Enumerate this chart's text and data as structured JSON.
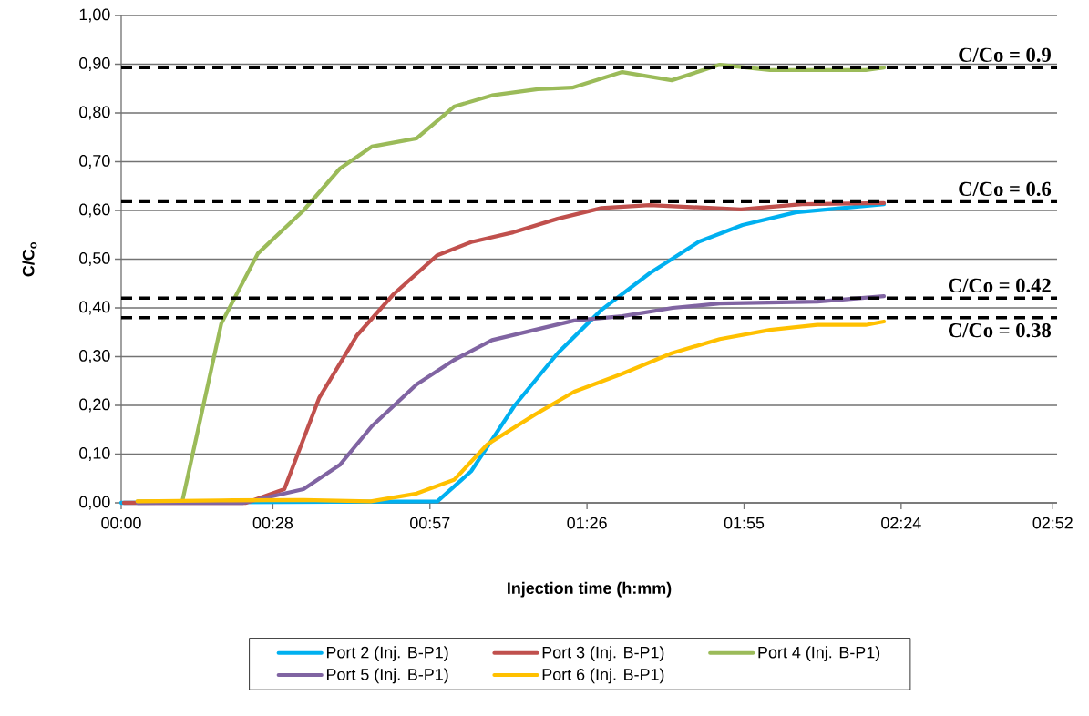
{
  "chart_data": {
    "type": "line",
    "xlabel": "Injection time (h:mm)",
    "ylabel": "C/C$_{o}$",
    "xlim": [
      0,
      2.88
    ],
    "xticks": [
      {
        "value": 0,
        "label": "00:00"
      },
      {
        "value": 0.4667,
        "label": "00:28"
      },
      {
        "value": 0.95,
        "label": "00:57"
      },
      {
        "value": 1.4333,
        "label": "01:26"
      },
      {
        "value": 1.9167,
        "label": "01:55"
      },
      {
        "value": 2.4,
        "label": "02:24"
      },
      {
        "value": 2.8667,
        "label": "02:52"
      }
    ],
    "ylim": [
      0,
      1
    ],
    "yticks": [
      {
        "value": 0,
        "label": "0,00"
      },
      {
        "value": 0.1,
        "label": "0,10"
      },
      {
        "value": 0.2,
        "label": "0,20"
      },
      {
        "value": 0.3,
        "label": "0,30"
      },
      {
        "value": 0.4,
        "label": "0,40"
      },
      {
        "value": 0.5,
        "label": "0,50"
      },
      {
        "value": 0.6,
        "label": "0,60"
      },
      {
        "value": 0.7,
        "label": "0,70"
      },
      {
        "value": 0.8,
        "label": "0,80"
      },
      {
        "value": 0.9,
        "label": "0,90"
      },
      {
        "value": 1,
        "label": "1,00"
      }
    ],
    "grid": "y",
    "legend": "bottom",
    "series": [
      {
        "name": "Port 2 (Inj. B-P1)",
        "color": "#00b0f0",
        "x": [
          0.0,
          0.973,
          1.077,
          1.211,
          1.343,
          1.478,
          1.626,
          1.778,
          1.912,
          2.075,
          2.347
        ],
        "values": [
          0.0,
          0.003,
          0.065,
          0.2,
          0.307,
          0.396,
          0.471,
          0.536,
          0.57,
          0.596,
          0.613
        ]
      },
      {
        "name": "Port 3 (Inj. B-P1)",
        "color": "#c0504d",
        "x": [
          0.008,
          0.384,
          0.502,
          0.609,
          0.726,
          0.838,
          0.973,
          1.077,
          1.206,
          1.343,
          1.478,
          1.626,
          1.907,
          2.095,
          2.347
        ],
        "values": [
          0.0,
          0.0,
          0.028,
          0.215,
          0.344,
          0.428,
          0.508,
          0.535,
          0.555,
          0.583,
          0.605,
          0.611,
          0.602,
          0.613,
          0.615
        ]
      },
      {
        "name": "Port 4 (Inj. B-P1)",
        "color": "#9bbb59",
        "x": [
          0.05,
          0.188,
          0.308,
          0.421,
          0.561,
          0.673,
          0.771,
          0.909,
          1.024,
          1.141,
          1.282,
          1.388,
          1.542,
          1.694,
          1.842,
          1.997,
          2.291,
          2.347
        ],
        "values": [
          0.003,
          0.003,
          0.368,
          0.512,
          0.6,
          0.686,
          0.731,
          0.748,
          0.813,
          0.836,
          0.849,
          0.852,
          0.884,
          0.867,
          0.899,
          0.888,
          0.888,
          0.893
        ]
      },
      {
        "name": "Port 5 (Inj. B-P1)",
        "color": "#8064a2",
        "x": [
          0.05,
          0.376,
          0.561,
          0.673,
          0.771,
          0.909,
          1.024,
          1.141,
          1.273,
          1.394,
          1.542,
          1.697,
          1.842,
          2.142,
          2.347
        ],
        "values": [
          0.0,
          0.0,
          0.028,
          0.078,
          0.157,
          0.243,
          0.293,
          0.334,
          0.355,
          0.374,
          0.383,
          0.4,
          0.409,
          0.413,
          0.424
        ]
      },
      {
        "name": "Port 6 (Inj. B-P1)",
        "color": "#ffc000",
        "x": [
          0.05,
          0.308,
          0.561,
          0.768,
          0.909,
          1.024,
          1.127,
          1.273,
          1.394,
          1.542,
          1.694,
          1.842,
          1.997,
          2.142,
          2.291,
          2.347
        ],
        "values": [
          0.003,
          0.005,
          0.006,
          0.003,
          0.019,
          0.047,
          0.12,
          0.181,
          0.228,
          0.265,
          0.307,
          0.336,
          0.355,
          0.365,
          0.365,
          0.372
        ]
      }
    ],
    "ref_lines": [
      {
        "axis": "y",
        "value": 0.38,
        "label": "C/Co = 0.38",
        "color": "#000000",
        "line_style": "dashed"
      },
      {
        "axis": "y",
        "value": 0.42,
        "label": "C/Co = 0.42",
        "color": "#000000",
        "line_style": "dashed"
      },
      {
        "axis": "y",
        "value": 0.618,
        "label": "C/Co = 0.6",
        "color": "#000000",
        "line_style": "dashed"
      },
      {
        "axis": "y",
        "value": 0.893,
        "label": "C/Co = 0.9",
        "color": "#000000",
        "line_style": "dashed"
      }
    ]
  }
}
